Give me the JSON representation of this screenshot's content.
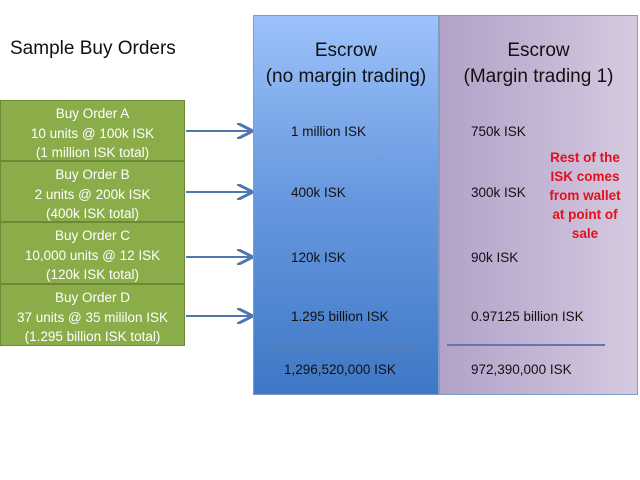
{
  "title": "Sample Buy Orders",
  "orders": [
    {
      "name": "Buy Order A",
      "detail": "10 units @ 100k ISK",
      "total": "(1 million ISK total)"
    },
    {
      "name": "Buy Order B",
      "detail": "2 units @ 200k ISK",
      "total": "(400k ISK total)"
    },
    {
      "name": "Buy Order C",
      "detail": "10,000 units @ 12 ISK",
      "total": "(120k ISK total)"
    },
    {
      "name": "Buy Order D",
      "detail": "37 units @ 35 mililon ISK",
      "total": "(1.295 billion ISK total)"
    }
  ],
  "escrow_no_margin": {
    "title": "Escrow",
    "subtitle": "(no margin trading)",
    "values": [
      "1 million ISK",
      "400k ISK",
      "120k ISK",
      "1.295 billion ISK"
    ],
    "total": "1,296,520,000 ISK"
  },
  "escrow_margin": {
    "title": "Escrow",
    "subtitle": "(Margin trading 1)",
    "values": [
      "750k ISK",
      "300k ISK",
      "90k ISK",
      "0.97125 billion ISK"
    ],
    "total": "972,390,000 ISK",
    "note": "Rest of the ISK comes from wallet at point of sale"
  },
  "colors": {
    "order_fill": "#8aad4a",
    "note": "#e0101c",
    "arrow": "#4f76b0"
  }
}
